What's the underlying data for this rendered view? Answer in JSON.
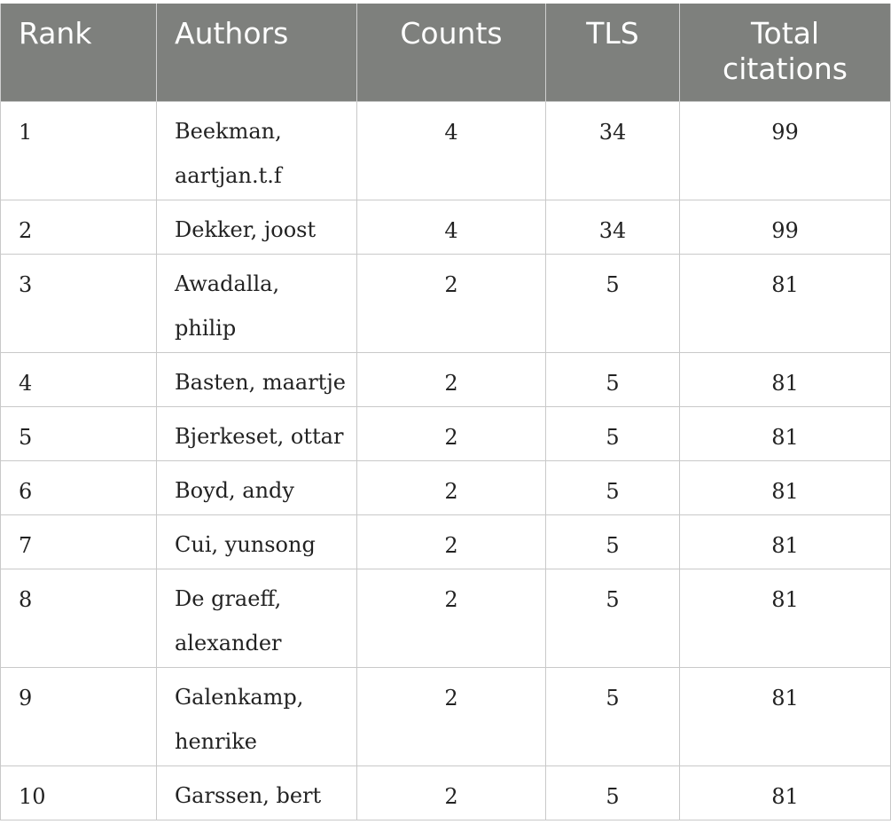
{
  "table": {
    "headers": {
      "rank": "Rank",
      "authors": "Authors",
      "counts": "Counts",
      "tls": "TLS",
      "total_line1": "Total",
      "total_line2": "citations"
    },
    "rows": [
      {
        "rank": "1",
        "author_line1": "Beekman,",
        "author_line2": "aartjan.t.f",
        "counts": "4",
        "tls": "34",
        "total": "99"
      },
      {
        "rank": "2",
        "author_line1": "Dekker, joost",
        "author_line2": "",
        "counts": "4",
        "tls": "34",
        "total": "99"
      },
      {
        "rank": "3",
        "author_line1": "Awadalla,",
        "author_line2": "philip",
        "counts": "2",
        "tls": "5",
        "total": "81"
      },
      {
        "rank": "4",
        "author_line1": "Basten, maartje",
        "author_line2": "",
        "counts": "2",
        "tls": "5",
        "total": "81"
      },
      {
        "rank": "5",
        "author_line1": "Bjerkeset, ottar",
        "author_line2": "",
        "counts": "2",
        "tls": "5",
        "total": "81"
      },
      {
        "rank": "6",
        "author_line1": "Boyd, andy",
        "author_line2": "",
        "counts": "2",
        "tls": "5",
        "total": "81"
      },
      {
        "rank": "7",
        "author_line1": "Cui, yunsong",
        "author_line2": "",
        "counts": "2",
        "tls": "5",
        "total": "81"
      },
      {
        "rank": "8",
        "author_line1": "De graeff,",
        "author_line2": "alexander",
        "counts": "2",
        "tls": "5",
        "total": "81"
      },
      {
        "rank": "9",
        "author_line1": "Galenkamp,",
        "author_line2": "henrike",
        "counts": "2",
        "tls": "5",
        "total": "81"
      },
      {
        "rank": "10",
        "author_line1": "Garssen, bert",
        "author_line2": "",
        "counts": "2",
        "tls": "5",
        "total": "81"
      }
    ]
  }
}
